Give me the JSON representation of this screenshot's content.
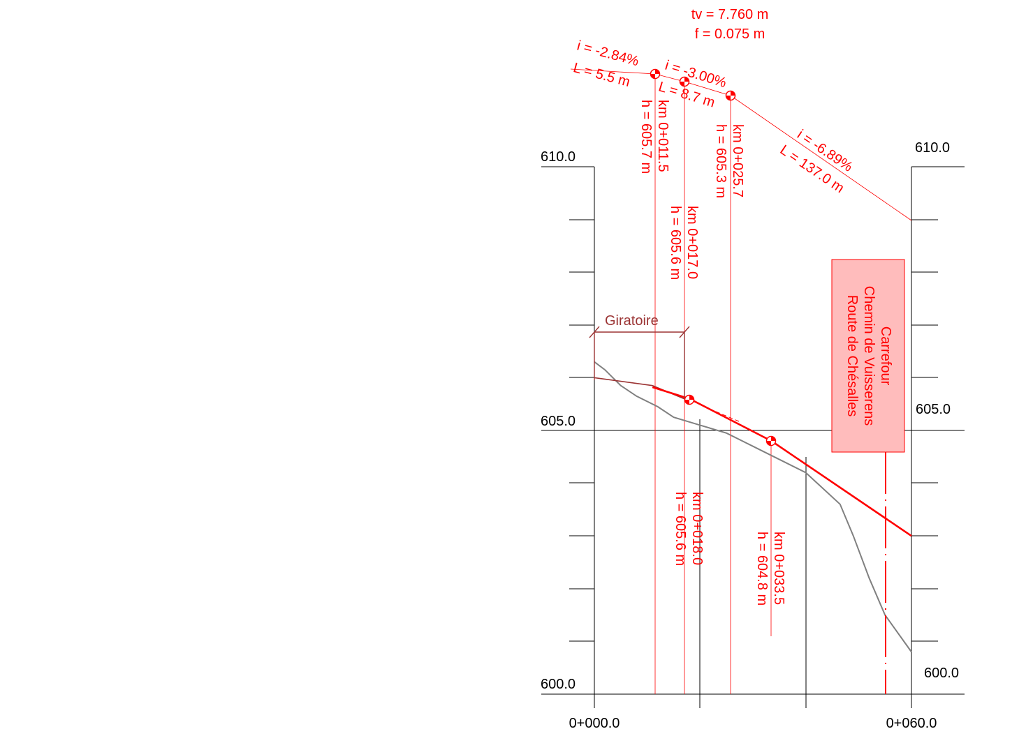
{
  "colors": {
    "design_line": "#ff0000",
    "terrain_line": "#808080",
    "existing_road": "#9b3434",
    "grid": "#000000",
    "carrefour_box_fill": "#ffbcbc",
    "carrefour_box_stroke": "#ff0000"
  },
  "axes": {
    "left_labels": {
      "top": "610.0",
      "mid": "605.0",
      "bottom": "600.0"
    },
    "right_labels": {
      "top": "610.0",
      "mid": "605.0",
      "bottom": "600.0"
    },
    "x_labels": {
      "start": "0+000.0",
      "end": "0+060.0"
    }
  },
  "curve": {
    "tv": "tv = 7.760 m",
    "f": "f = 0.075 m"
  },
  "slopes": [
    {
      "i": "i = -2.84%",
      "L": "L = 5.5 m"
    },
    {
      "i": "i = -3.00%",
      "L": "L = 8.7 m"
    },
    {
      "i": "i = -6.89%",
      "L": "L = 137.0 m"
    }
  ],
  "stations": [
    {
      "km": "km  0+011.5",
      "h": "h = 605.7 m"
    },
    {
      "km": "km  0+017.0",
      "h": "h = 605.6 m"
    },
    {
      "km": "km  0+025.7",
      "h": "h = 605.3 m"
    },
    {
      "km": "km  0+018.0",
      "h": "h = 605.6 m"
    },
    {
      "km": "km  0+033.5",
      "h": "h = 604.8 m"
    }
  ],
  "giratoire_label": "Giratoire",
  "carrefour": {
    "line1": "Carrefour",
    "line2": "Chemin de Vuisserens",
    "line3": "Route de Chésalles"
  },
  "profile": {
    "station_range_m": [
      0,
      60
    ],
    "elevation_range_m": [
      600.0,
      610.0
    ],
    "terrain": [
      {
        "x": 0,
        "h": 606.3
      },
      {
        "x": 2.0,
        "h": 606.15
      },
      {
        "x": 5.0,
        "h": 605.85
      },
      {
        "x": 8.0,
        "h": 605.65
      },
      {
        "x": 12.0,
        "h": 605.45
      },
      {
        "x": 15.0,
        "h": 605.25
      },
      {
        "x": 20.0,
        "h": 605.1
      },
      {
        "x": 25.0,
        "h": 604.95
      },
      {
        "x": 30.0,
        "h": 604.7
      },
      {
        "x": 34.0,
        "h": 604.5
      },
      {
        "x": 40.0,
        "h": 604.2
      },
      {
        "x": 46.5,
        "h": 603.6
      },
      {
        "x": 49.0,
        "h": 603.0
      },
      {
        "x": 52.0,
        "h": 602.2
      },
      {
        "x": 55.0,
        "h": 601.5
      },
      {
        "x": 60.0,
        "h": 600.8
      }
    ],
    "existing_road": [
      {
        "x": 0,
        "h": 606.0
      },
      {
        "x": 11.0,
        "h": 605.85
      },
      {
        "x": 17.0,
        "h": 605.6
      }
    ],
    "design": [
      {
        "x": 11.0,
        "h": 605.82
      },
      {
        "x": 18.0,
        "h": 605.6
      },
      {
        "x": 33.5,
        "h": 604.8
      },
      {
        "x": 60.0,
        "h": 603.0
      }
    ],
    "upper_profile": [
      {
        "x": -4.5,
        "h": 612.4
      },
      {
        "x": 11.5,
        "h": 611.5
      },
      {
        "x": 17.0,
        "h": 611.35
      },
      {
        "x": 25.7,
        "h": 611.1
      },
      {
        "x": 60.0,
        "h": 608.95
      }
    ],
    "giratoire_range_m": [
      0,
      17.0
    ],
    "carrefour_station_m": 55.0
  }
}
